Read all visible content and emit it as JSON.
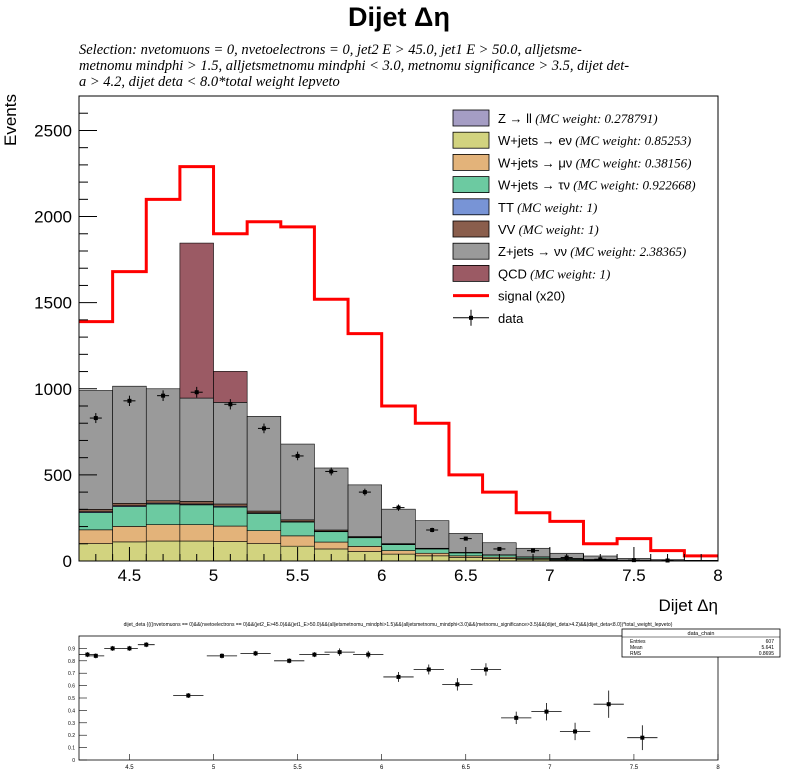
{
  "title": "Dijet Δη",
  "selection": "Selection: nvetomuons  =  0, nvetoelectrons  =  0, jet2 E > 45.0, jet1 E > 50.0, alljetsmetnomu mindphi > 1.5, alljetsmetnomu mindphi < 3.0, metnomu significance > 3.5, dijet deta > 4.2, dijet deta < 8.0*total weight lepveto",
  "selection_lines": [
    "Selection: nvetomuons  =  0, nvetoelectrons  =  0, jet2 E > 45.0, jet1 E > 50.0, alljetsme-",
    "metnomu mindphi > 1.5, alljetsmetnomu mindphi < 3.0, metnomu significance > 3.5, dijet det-",
    "a > 4.2, dijet deta < 8.0*total weight lepveto"
  ],
  "colors": {
    "zll": "#a59dc4",
    "wenu": "#d2d37f",
    "wmunu": "#e3b37a",
    "wtaunu": "#6ccaa1",
    "tt": "#7894d6",
    "vv": "#8a5e4c",
    "znunu": "#9a9a9a",
    "qcd": "#9b5a64",
    "signal": "#ff0000",
    "data": "#000000"
  },
  "chart_data": [
    {
      "type": "bar",
      "stacked": true,
      "xlabel": "Dijet Δη",
      "ylabel": "Events",
      "xlim": [
        4.2,
        8.0
      ],
      "ylim": [
        0,
        2700
      ],
      "x_ticks": [
        "4.5",
        "5",
        "5.5",
        "6",
        "6.5",
        "7",
        "7.5",
        "8"
      ],
      "x_tick_values": [
        4.5,
        5.0,
        5.5,
        6.0,
        6.5,
        7.0,
        7.5,
        8.0
      ],
      "y_ticks": [
        "0",
        "500",
        "1000",
        "1500",
        "2000",
        "2500"
      ],
      "y_tick_values": [
        0,
        500,
        1000,
        1500,
        2000,
        2500
      ],
      "bin_edges": [
        4.2,
        4.4,
        4.6,
        4.8,
        5.0,
        5.2,
        5.4,
        5.6,
        5.8,
        6.0,
        6.2,
        6.4,
        6.6,
        6.8,
        7.0,
        7.2,
        7.4,
        7.6,
        7.8,
        8.0
      ],
      "legend_position": "top-right",
      "series": [
        {
          "key": "zll",
          "label": "Z → ll",
          "weight": "(MC weight: 0.278791)",
          "values": [
            1,
            1,
            1,
            1,
            1,
            1,
            1,
            0,
            0,
            0,
            0,
            0,
            0,
            0,
            0,
            0,
            0,
            0,
            0
          ]
        },
        {
          "key": "wenu",
          "label": "W+jets → eν",
          "weight": "(MC weight: 0.85253)",
          "values": [
            100,
            110,
            115,
            115,
            112,
            100,
            85,
            70,
            55,
            40,
            30,
            20,
            15,
            10,
            6,
            4,
            2,
            1,
            1
          ]
        },
        {
          "key": "wmunu",
          "label": "W+jets → μν",
          "weight": "(MC weight: 0.38156)",
          "values": [
            80,
            90,
            95,
            95,
            90,
            75,
            60,
            40,
            30,
            20,
            15,
            10,
            7,
            5,
            3,
            2,
            1,
            1,
            0
          ]
        },
        {
          "key": "wtaunu",
          "label": "W+jets → τν",
          "weight": "(MC weight: 0.922668)",
          "values": [
            100,
            115,
            120,
            115,
            110,
            100,
            80,
            60,
            50,
            35,
            25,
            17,
            12,
            8,
            5,
            3,
            2,
            1,
            0
          ]
        },
        {
          "key": "tt",
          "label": "TT",
          "weight": "(MC weight: 1)",
          "values": [
            5,
            5,
            5,
            5,
            5,
            4,
            3,
            3,
            2,
            2,
            1,
            1,
            1,
            0,
            0,
            0,
            0,
            0,
            0
          ]
        },
        {
          "key": "vv",
          "label": "VV",
          "weight": "(MC weight: 1)",
          "values": [
            14,
            14,
            14,
            15,
            13,
            10,
            10,
            7,
            5,
            4,
            3,
            2,
            1,
            1,
            1,
            0,
            0,
            0,
            0
          ]
        },
        {
          "key": "znunu",
          "label": "Z+jets → νν",
          "weight": "(MC weight: 2.38365)",
          "values": [
            690,
            680,
            650,
            600,
            590,
            550,
            440,
            360,
            300,
            200,
            160,
            110,
            70,
            50,
            30,
            20,
            10,
            5,
            3
          ]
        },
        {
          "key": "qcd",
          "label": "QCD",
          "weight": "(MC weight: 1)",
          "values": [
            0,
            0,
            0,
            900,
            180,
            0,
            0,
            0,
            0,
            0,
            0,
            0,
            0,
            0,
            0,
            0,
            0,
            0,
            0
          ]
        }
      ],
      "signal": {
        "label": "signal (x20)",
        "values": [
          1390,
          1680,
          2100,
          2290,
          1900,
          1970,
          1940,
          1520,
          1320,
          900,
          800,
          500,
          400,
          280,
          230,
          100,
          130,
          60,
          30
        ]
      },
      "data": {
        "label": "data",
        "values": [
          830,
          930,
          960,
          980,
          910,
          770,
          610,
          520,
          400,
          310,
          180,
          130,
          70,
          60,
          20,
          10,
          5,
          3,
          0
        ],
        "errors": [
          29,
          30,
          31,
          31,
          30,
          28,
          25,
          23,
          20,
          18,
          13,
          11,
          8,
          8,
          5,
          3,
          2,
          2,
          0
        ]
      }
    },
    {
      "type": "scatter",
      "title": "dijet_deta {(((nvetomuons == 0)&&(nvetoelectrons == 0)&&(jet2_E>45.0)&&(jet1_E>50.0)&&(alljetsmetnomu_mindphi>1.5)&&(alljetsmetnomu_mindphi<3.0)&&(metnomu_significance>3.5)&&(dijet_deta>4.2)&&(dijet_deta<8.0))*total_weight_lepveto)",
      "xlim": [
        4.2,
        8.0
      ],
      "ylim": [
        0,
        1.0
      ],
      "x_ticks": [
        "4.5",
        "5",
        "5.5",
        "6",
        "6.5",
        "7",
        "7.5",
        "8"
      ],
      "x_tick_values": [
        4.5,
        5.0,
        5.5,
        6.0,
        6.5,
        7.0,
        7.5,
        8.0
      ],
      "y_ticks": [
        "0",
        "0.1",
        "0.2",
        "0.3",
        "0.4",
        "0.5",
        "0.6",
        "0.7",
        "0.8",
        "0.9"
      ],
      "y_tick_values": [
        0,
        0.1,
        0.2,
        0.3,
        0.4,
        0.5,
        0.6,
        0.7,
        0.8,
        0.9
      ],
      "points": [
        {
          "x": 4.25,
          "y": 0.85,
          "xerr": 0.05,
          "yerr": 0.02
        },
        {
          "x": 4.3,
          "y": 0.84,
          "xerr": 0.05,
          "yerr": 0.02
        },
        {
          "x": 4.4,
          "y": 0.9,
          "xerr": 0.05,
          "yerr": 0.02
        },
        {
          "x": 4.5,
          "y": 0.9,
          "xerr": 0.05,
          "yerr": 0.02
        },
        {
          "x": 4.6,
          "y": 0.93,
          "xerr": 0.05,
          "yerr": 0.02
        },
        {
          "x": 4.85,
          "y": 0.52,
          "xerr": 0.09,
          "yerr": 0.02
        },
        {
          "x": 5.05,
          "y": 0.84,
          "xerr": 0.09,
          "yerr": 0.02
        },
        {
          "x": 5.25,
          "y": 0.86,
          "xerr": 0.09,
          "yerr": 0.02
        },
        {
          "x": 5.45,
          "y": 0.8,
          "xerr": 0.09,
          "yerr": 0.02
        },
        {
          "x": 5.6,
          "y": 0.85,
          "xerr": 0.09,
          "yerr": 0.02
        },
        {
          "x": 5.75,
          "y": 0.87,
          "xerr": 0.09,
          "yerr": 0.03
        },
        {
          "x": 5.92,
          "y": 0.85,
          "xerr": 0.09,
          "yerr": 0.03
        },
        {
          "x": 6.1,
          "y": 0.67,
          "xerr": 0.09,
          "yerr": 0.04
        },
        {
          "x": 6.28,
          "y": 0.73,
          "xerr": 0.09,
          "yerr": 0.04
        },
        {
          "x": 6.45,
          "y": 0.61,
          "xerr": 0.09,
          "yerr": 0.05
        },
        {
          "x": 6.62,
          "y": 0.73,
          "xerr": 0.09,
          "yerr": 0.05
        },
        {
          "x": 6.8,
          "y": 0.34,
          "xerr": 0.09,
          "yerr": 0.05
        },
        {
          "x": 6.98,
          "y": 0.39,
          "xerr": 0.09,
          "yerr": 0.07
        },
        {
          "x": 7.15,
          "y": 0.23,
          "xerr": 0.09,
          "yerr": 0.07
        },
        {
          "x": 7.35,
          "y": 0.45,
          "xerr": 0.09,
          "yerr": 0.11
        },
        {
          "x": 7.55,
          "y": 0.18,
          "xerr": 0.09,
          "yerr": 0.1
        }
      ],
      "stats": {
        "header": "data_chain",
        "rows": [
          {
            "label": "Entries",
            "value": "607"
          },
          {
            "label": "Mean",
            "value": "5.641"
          },
          {
            "label": "RMS",
            "value": "0.8695"
          }
        ]
      }
    }
  ]
}
